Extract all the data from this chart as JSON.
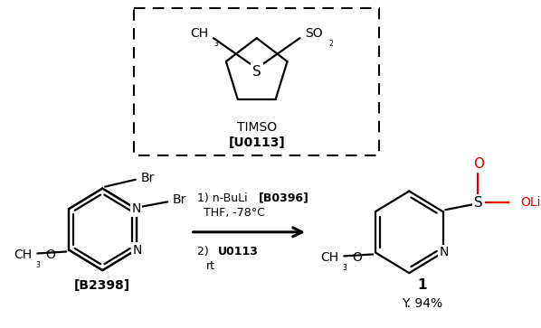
{
  "bg_color": "#ffffff",
  "text_color": "#000000",
  "red_color": "#dd0000",
  "fig_width": 5.98,
  "fig_height": 3.63,
  "dpi": 100,
  "label_b2398": "[B2398]",
  "label_1": "1",
  "label_yield": "Y. 94%",
  "label_timso": "TIMSO",
  "label_u0113": "[U0113]"
}
